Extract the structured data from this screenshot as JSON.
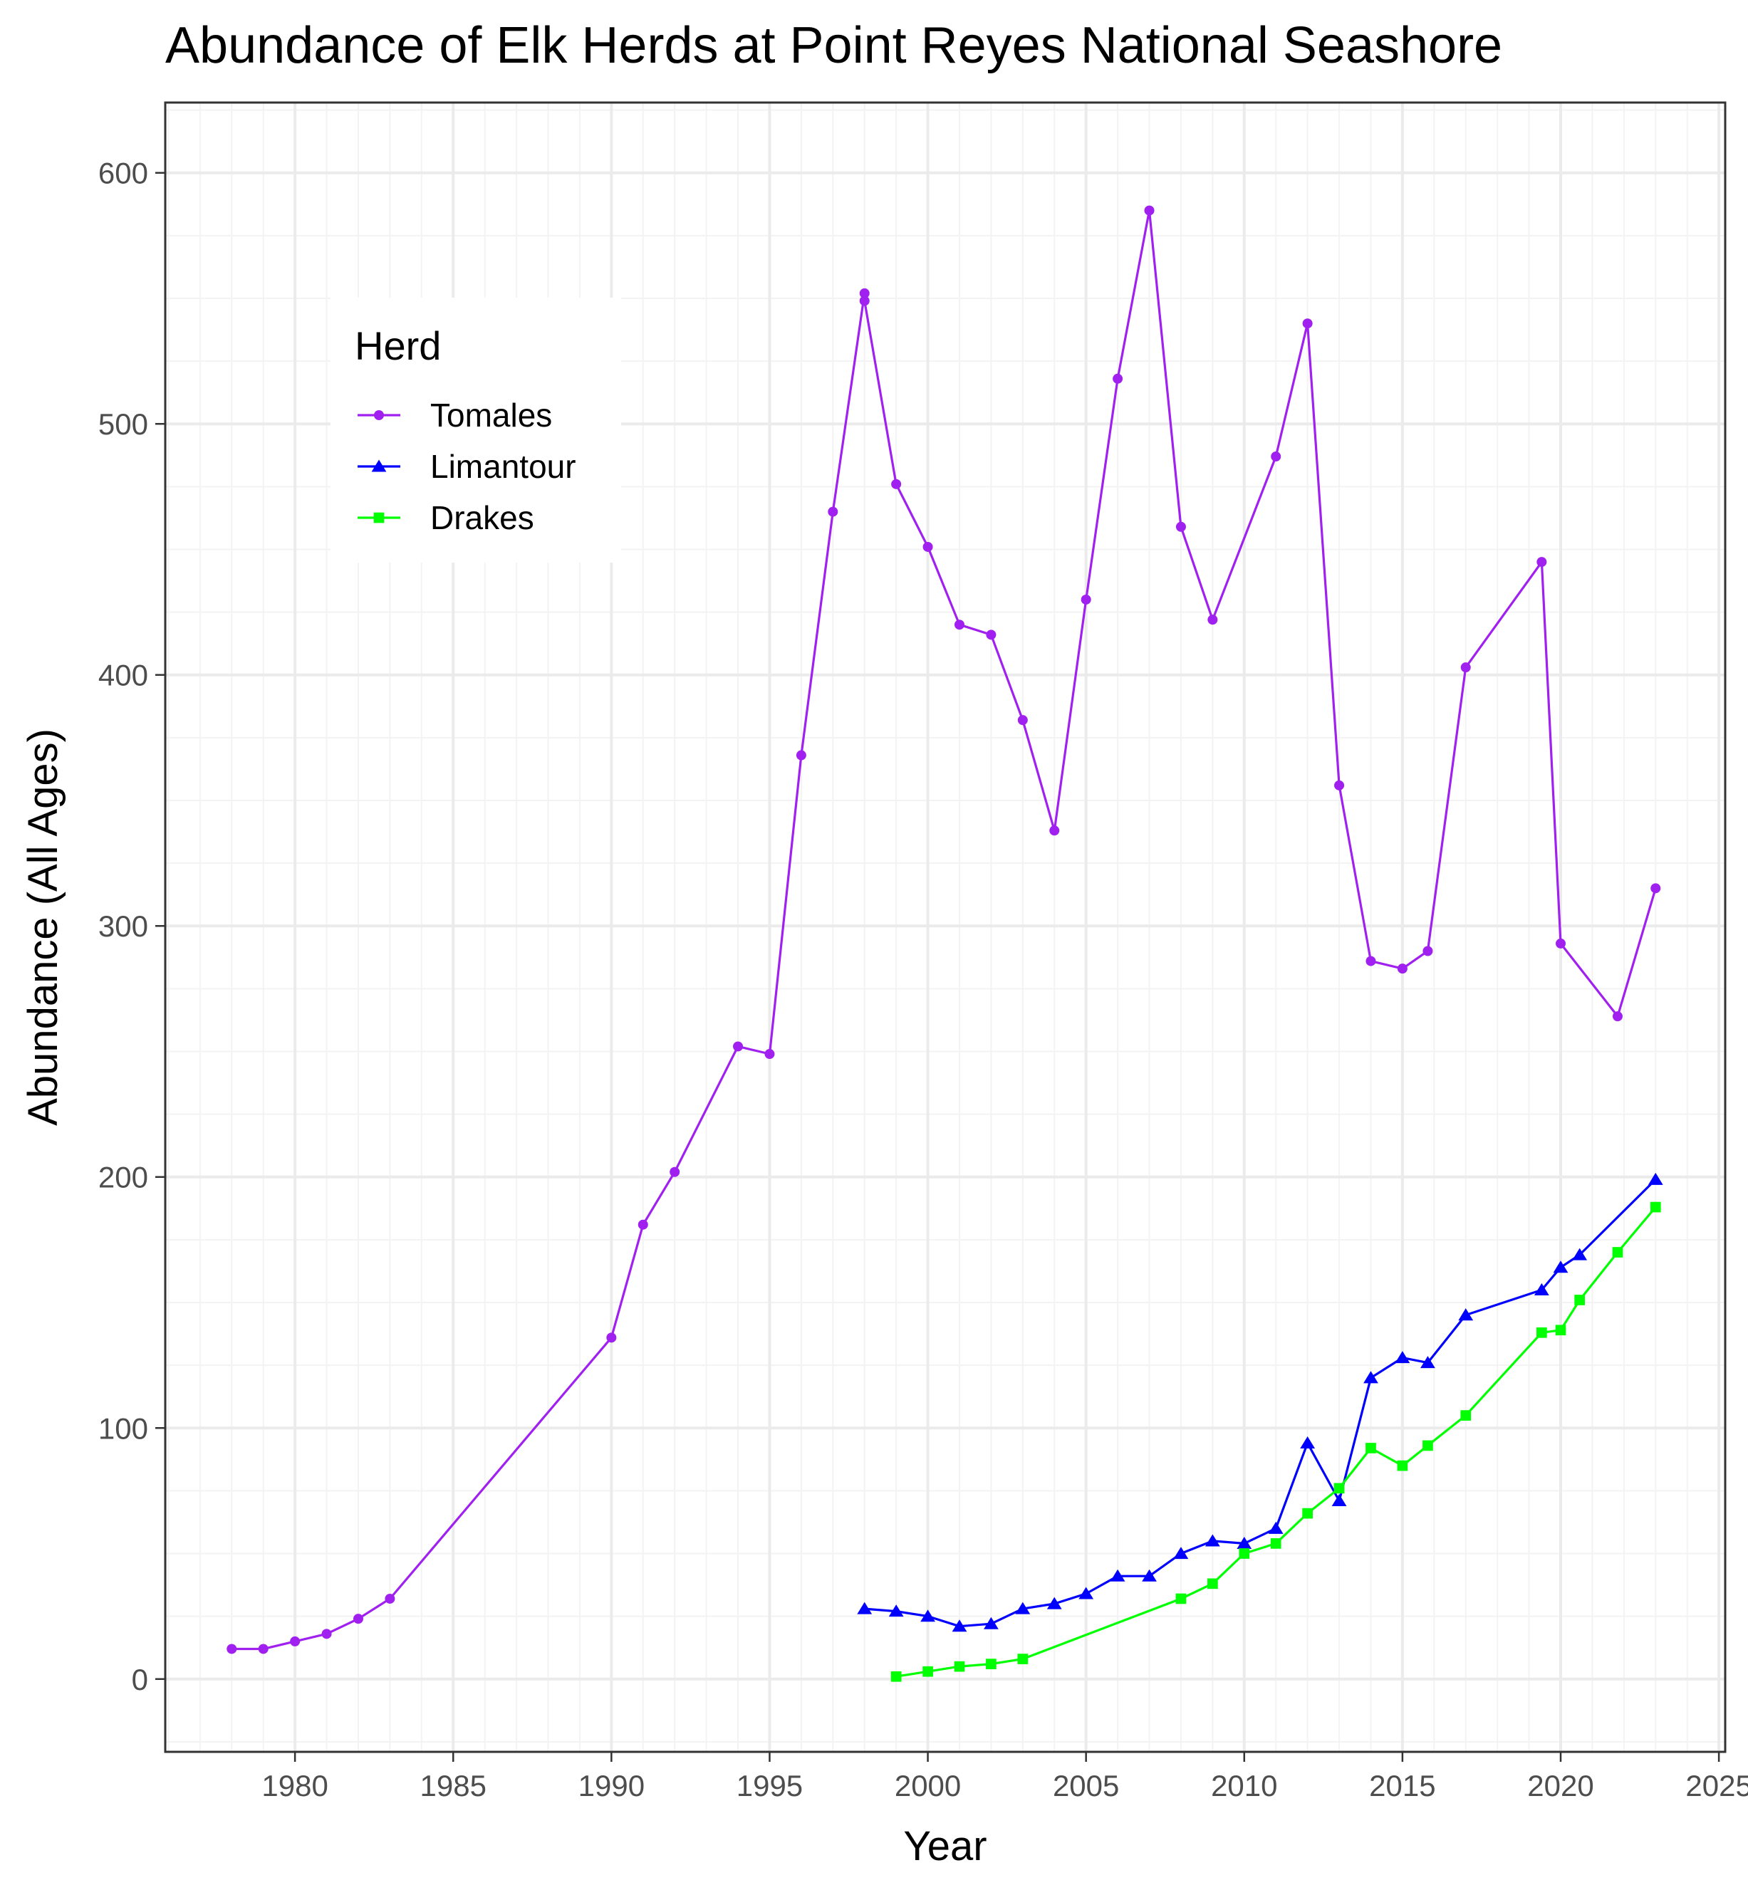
{
  "chart_data": {
    "type": "line",
    "title": "Abundance of Elk Herds at Point Reyes National Seashore",
    "xlabel": "Year",
    "ylabel": "Abundance (All Ages)",
    "xlim": [
      1975.9,
      2025.2
    ],
    "ylim": [
      -29,
      628
    ],
    "x_ticks": [
      1980,
      1985,
      1990,
      1995,
      2000,
      2005,
      2010,
      2015,
      2020,
      2025
    ],
    "y_ticks": [
      0,
      100,
      200,
      300,
      400,
      500,
      600
    ],
    "grid": true,
    "legend": {
      "title": "Herd",
      "position": "top-left-inside"
    },
    "series": [
      {
        "name": "Tomales",
        "color": "#A020F0",
        "marker": "circle",
        "points": [
          [
            1978,
            12
          ],
          [
            1979,
            12
          ],
          [
            1980,
            15
          ],
          [
            1981,
            18
          ],
          [
            1982,
            24
          ],
          [
            1983,
            32
          ],
          [
            1990,
            136
          ],
          [
            1991,
            181
          ],
          [
            1992,
            202
          ],
          [
            1994,
            252
          ],
          [
            1995,
            249
          ],
          [
            1996,
            368
          ],
          [
            1997,
            465
          ],
          [
            1998,
            552
          ],
          [
            1998,
            549
          ],
          [
            1999,
            476
          ],
          [
            2000,
            451
          ],
          [
            2001,
            420
          ],
          [
            2002,
            416
          ],
          [
            2003,
            382
          ],
          [
            2004,
            338
          ],
          [
            2005,
            430
          ],
          [
            2006,
            518
          ],
          [
            2007,
            585
          ],
          [
            2008,
            459
          ],
          [
            2009,
            422
          ],
          [
            2011,
            487
          ],
          [
            2012,
            540
          ],
          [
            2013,
            356
          ],
          [
            2014,
            286
          ],
          [
            2015,
            283
          ],
          [
            2015.8,
            290
          ],
          [
            2017,
            403
          ],
          [
            2019.4,
            445
          ],
          [
            2020,
            293
          ],
          [
            2021.8,
            264
          ],
          [
            2023,
            315
          ]
        ]
      },
      {
        "name": "Limantour",
        "color": "#0000FF",
        "marker": "triangle",
        "points": [
          [
            1998,
            28
          ],
          [
            1999,
            27
          ],
          [
            2000,
            25
          ],
          [
            2001,
            21
          ],
          [
            2002,
            22
          ],
          [
            2003,
            28
          ],
          [
            2004,
            30
          ],
          [
            2005,
            34
          ],
          [
            2006,
            41
          ],
          [
            2007,
            41
          ],
          [
            2008,
            50
          ],
          [
            2009,
            55
          ],
          [
            2010,
            54
          ],
          [
            2011,
            60
          ],
          [
            2012,
            94
          ],
          [
            2013,
            71
          ],
          [
            2014,
            120
          ],
          [
            2015,
            128
          ],
          [
            2015.8,
            126
          ],
          [
            2017,
            145
          ],
          [
            2019.4,
            155
          ],
          [
            2020,
            164
          ],
          [
            2020.6,
            169
          ],
          [
            2023,
            199
          ]
        ]
      },
      {
        "name": "Drakes",
        "color": "#00FF00",
        "marker": "square",
        "points": [
          [
            1999,
            1
          ],
          [
            2000,
            3
          ],
          [
            2001,
            5
          ],
          [
            2002,
            6
          ],
          [
            2003,
            8
          ],
          [
            2008,
            32
          ],
          [
            2009,
            38
          ],
          [
            2010,
            50
          ],
          [
            2011,
            54
          ],
          [
            2012,
            66
          ],
          [
            2013,
            76
          ],
          [
            2014,
            92
          ],
          [
            2015,
            85
          ],
          [
            2015.8,
            93
          ],
          [
            2017,
            105
          ],
          [
            2019.4,
            138
          ],
          [
            2020,
            139
          ],
          [
            2020.6,
            151
          ],
          [
            2021.8,
            170
          ],
          [
            2023,
            188
          ]
        ]
      }
    ]
  }
}
